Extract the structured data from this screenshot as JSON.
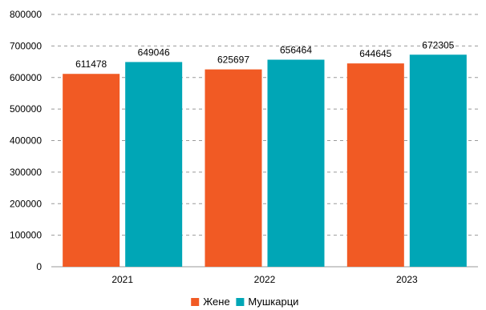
{
  "chart_data": {
    "type": "bar",
    "categories": [
      "2021",
      "2022",
      "2023"
    ],
    "series": [
      {
        "name": "Жене",
        "values": [
          611478,
          625697,
          644645
        ],
        "color": "#F15A24"
      },
      {
        "name": "Мушкарци",
        "values": [
          649046,
          656464,
          672305
        ],
        "color": "#00A6B6"
      }
    ],
    "ylim": [
      0,
      800000
    ],
    "y_ticks": [
      0,
      100000,
      200000,
      300000,
      400000,
      500000,
      600000,
      700000,
      800000
    ],
    "grid": true,
    "grid_style": "dashed",
    "legend_position": "bottom-center",
    "data_labels": true,
    "title": "",
    "xlabel": "",
    "ylabel": ""
  }
}
